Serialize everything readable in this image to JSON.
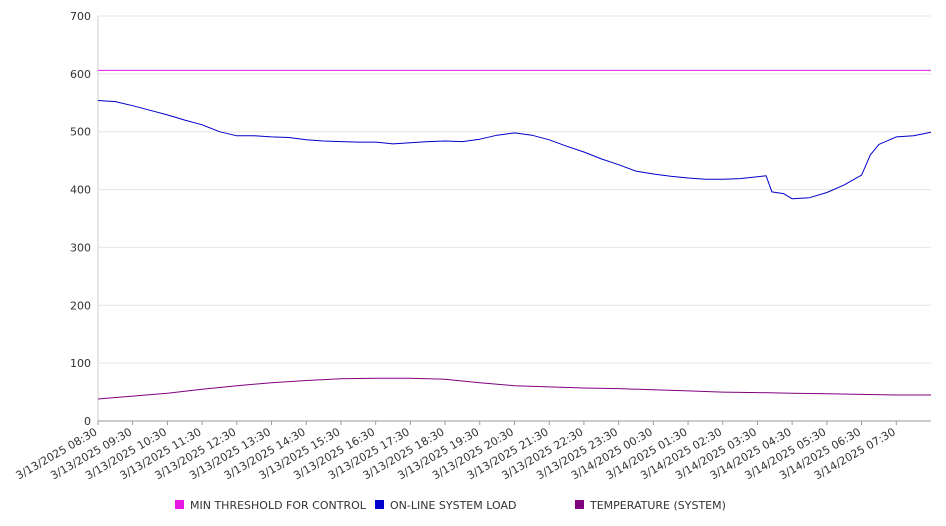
{
  "chart_data": {
    "type": "line",
    "title": "",
    "xlabel": "",
    "ylabel": "",
    "ylim": [
      0,
      700
    ],
    "yticks": [
      0,
      100,
      200,
      300,
      400,
      500,
      600,
      700
    ],
    "grid": true,
    "legend_position": "bottom",
    "x_start": "3/13/2025 08:30",
    "x_end": "3/14/2025 08:30",
    "xtick_labels": [
      "3/13/2025 08:30",
      "3/13/2025 09:30",
      "3/13/2025 10:30",
      "3/13/2025 11:30",
      "3/13/2025 12:30",
      "3/13/2025 13:30",
      "3/13/2025 14:30",
      "3/13/2025 15:30",
      "3/13/2025 16:30",
      "3/13/2025 17:30",
      "3/13/2025 18:30",
      "3/13/2025 19:30",
      "3/13/2025 20:30",
      "3/13/2025 21:30",
      "3/13/2025 22:30",
      "3/13/2025 23:30",
      "3/14/2025 00:30",
      "3/14/2025 01:30",
      "3/14/2025 02:30",
      "3/14/2025 03:30",
      "3/14/2025 04:30",
      "3/14/2025 05:30",
      "3/14/2025 06:30",
      "3/14/2025 07:30"
    ],
    "series": [
      {
        "name": "MIN THRESHOLD FOR CONTROL",
        "color": "#e619e6",
        "points": [
          [
            "3/13/2025 08:30",
            606
          ],
          [
            "3/14/2025 08:30",
            606
          ]
        ]
      },
      {
        "name": "ON-LINE SYSTEM LOAD",
        "color": "#0000cc",
        "points": [
          [
            "3/13/2025 08:30",
            554
          ],
          [
            "3/13/2025 09:00",
            552
          ],
          [
            "3/13/2025 09:30",
            545
          ],
          [
            "3/13/2025 10:00",
            537
          ],
          [
            "3/13/2025 10:30",
            529
          ],
          [
            "3/13/2025 11:00",
            520
          ],
          [
            "3/13/2025 11:30",
            512
          ],
          [
            "3/13/2025 12:00",
            500
          ],
          [
            "3/13/2025 12:30",
            493
          ],
          [
            "3/13/2025 13:00",
            493
          ],
          [
            "3/13/2025 13:30",
            491
          ],
          [
            "3/13/2025 14:00",
            490
          ],
          [
            "3/13/2025 14:30",
            486
          ],
          [
            "3/13/2025 15:00",
            484
          ],
          [
            "3/13/2025 15:30",
            483
          ],
          [
            "3/13/2025 16:00",
            482
          ],
          [
            "3/13/2025 16:30",
            482
          ],
          [
            "3/13/2025 17:00",
            479
          ],
          [
            "3/13/2025 17:30",
            481
          ],
          [
            "3/13/2025 18:00",
            483
          ],
          [
            "3/13/2025 18:30",
            484
          ],
          [
            "3/13/2025 19:00",
            483
          ],
          [
            "3/13/2025 19:30",
            487
          ],
          [
            "3/13/2025 20:00",
            494
          ],
          [
            "3/13/2025 20:30",
            498
          ],
          [
            "3/13/2025 21:00",
            494
          ],
          [
            "3/13/2025 21:30",
            486
          ],
          [
            "3/13/2025 22:00",
            475
          ],
          [
            "3/13/2025 22:30",
            465
          ],
          [
            "3/13/2025 23:00",
            453
          ],
          [
            "3/13/2025 23:30",
            443
          ],
          [
            "3/14/2025 00:00",
            432
          ],
          [
            "3/14/2025 00:30",
            427
          ],
          [
            "3/14/2025 01:00",
            423
          ],
          [
            "3/14/2025 01:30",
            420
          ],
          [
            "3/14/2025 02:00",
            418
          ],
          [
            "3/14/2025 02:30",
            418
          ],
          [
            "3/14/2025 03:00",
            419
          ],
          [
            "3/14/2025 03:30",
            422
          ],
          [
            "3/14/2025 03:45",
            424
          ],
          [
            "3/14/2025 03:55",
            396
          ],
          [
            "3/14/2025 04:15",
            393
          ],
          [
            "3/14/2025 04:30",
            384
          ],
          [
            "3/14/2025 05:00",
            386
          ],
          [
            "3/14/2025 05:30",
            395
          ],
          [
            "3/14/2025 06:00",
            408
          ],
          [
            "3/14/2025 06:30",
            425
          ],
          [
            "3/14/2025 06:45",
            460
          ],
          [
            "3/14/2025 07:00",
            478
          ],
          [
            "3/14/2025 07:30",
            491
          ],
          [
            "3/14/2025 08:00",
            493
          ],
          [
            "3/14/2025 08:30",
            499
          ]
        ]
      },
      {
        "name": "TEMPERATURE (SYSTEM)",
        "color": "#800080",
        "points": [
          [
            "3/13/2025 08:30",
            38
          ],
          [
            "3/13/2025 09:30",
            43
          ],
          [
            "3/13/2025 10:30",
            48
          ],
          [
            "3/13/2025 11:30",
            55
          ],
          [
            "3/13/2025 12:30",
            61
          ],
          [
            "3/13/2025 13:30",
            66
          ],
          [
            "3/13/2025 14:30",
            70
          ],
          [
            "3/13/2025 15:30",
            73
          ],
          [
            "3/13/2025 16:30",
            74
          ],
          [
            "3/13/2025 17:30",
            74
          ],
          [
            "3/13/2025 18:30",
            72
          ],
          [
            "3/13/2025 19:30",
            66
          ],
          [
            "3/13/2025 20:30",
            61
          ],
          [
            "3/13/2025 21:30",
            59
          ],
          [
            "3/13/2025 22:30",
            57
          ],
          [
            "3/13/2025 23:30",
            56
          ],
          [
            "3/14/2025 00:30",
            54
          ],
          [
            "3/14/2025 01:30",
            52
          ],
          [
            "3/14/2025 02:30",
            50
          ],
          [
            "3/14/2025 03:30",
            49
          ],
          [
            "3/14/2025 04:30",
            48
          ],
          [
            "3/14/2025 05:30",
            47
          ],
          [
            "3/14/2025 06:30",
            46
          ],
          [
            "3/14/2025 07:30",
            45
          ],
          [
            "3/14/2025 08:30",
            45
          ]
        ]
      }
    ]
  }
}
